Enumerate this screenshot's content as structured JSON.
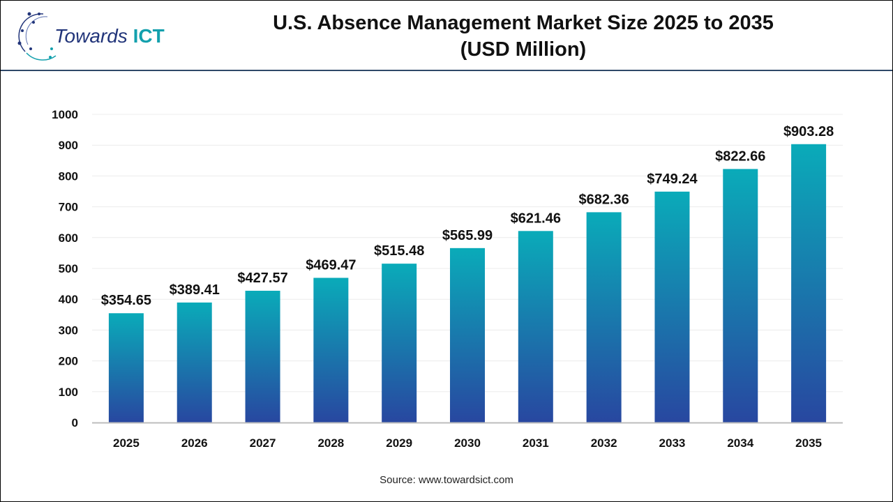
{
  "logo": {
    "text_main": "Towards",
    "text_accent": "ICT"
  },
  "title_line1": "U.S. Absence Management Market Size 2025 to 2035",
  "title_line2": "(USD Million)",
  "source": "Source: www.towardsict.com",
  "colors": {
    "bar_top": "#0aabb9",
    "bar_bottom": "#2847a0",
    "header_rule": "#2f4868"
  },
  "chart_data": {
    "type": "bar",
    "title": "U.S. Absence Management Market Size 2025 to 2035 (USD Million)",
    "categories": [
      "2025",
      "2026",
      "2027",
      "2028",
      "2029",
      "2030",
      "2031",
      "2032",
      "2033",
      "2034",
      "2035"
    ],
    "values": [
      354.65,
      389.41,
      427.57,
      469.47,
      515.48,
      565.99,
      621.46,
      682.36,
      749.24,
      822.66,
      903.28
    ],
    "data_labels": [
      "$354.65",
      "$389.41",
      "$427.57",
      "$469.47",
      "$515.48",
      "$565.99",
      "$621.46",
      "$682.36",
      "$749.24",
      "$822.66",
      "$903.28"
    ],
    "yticks": [
      0,
      100,
      200,
      300,
      400,
      500,
      600,
      700,
      800,
      900,
      1000
    ],
    "ylim": [
      0,
      1000
    ],
    "grid": true,
    "legend": "none"
  }
}
